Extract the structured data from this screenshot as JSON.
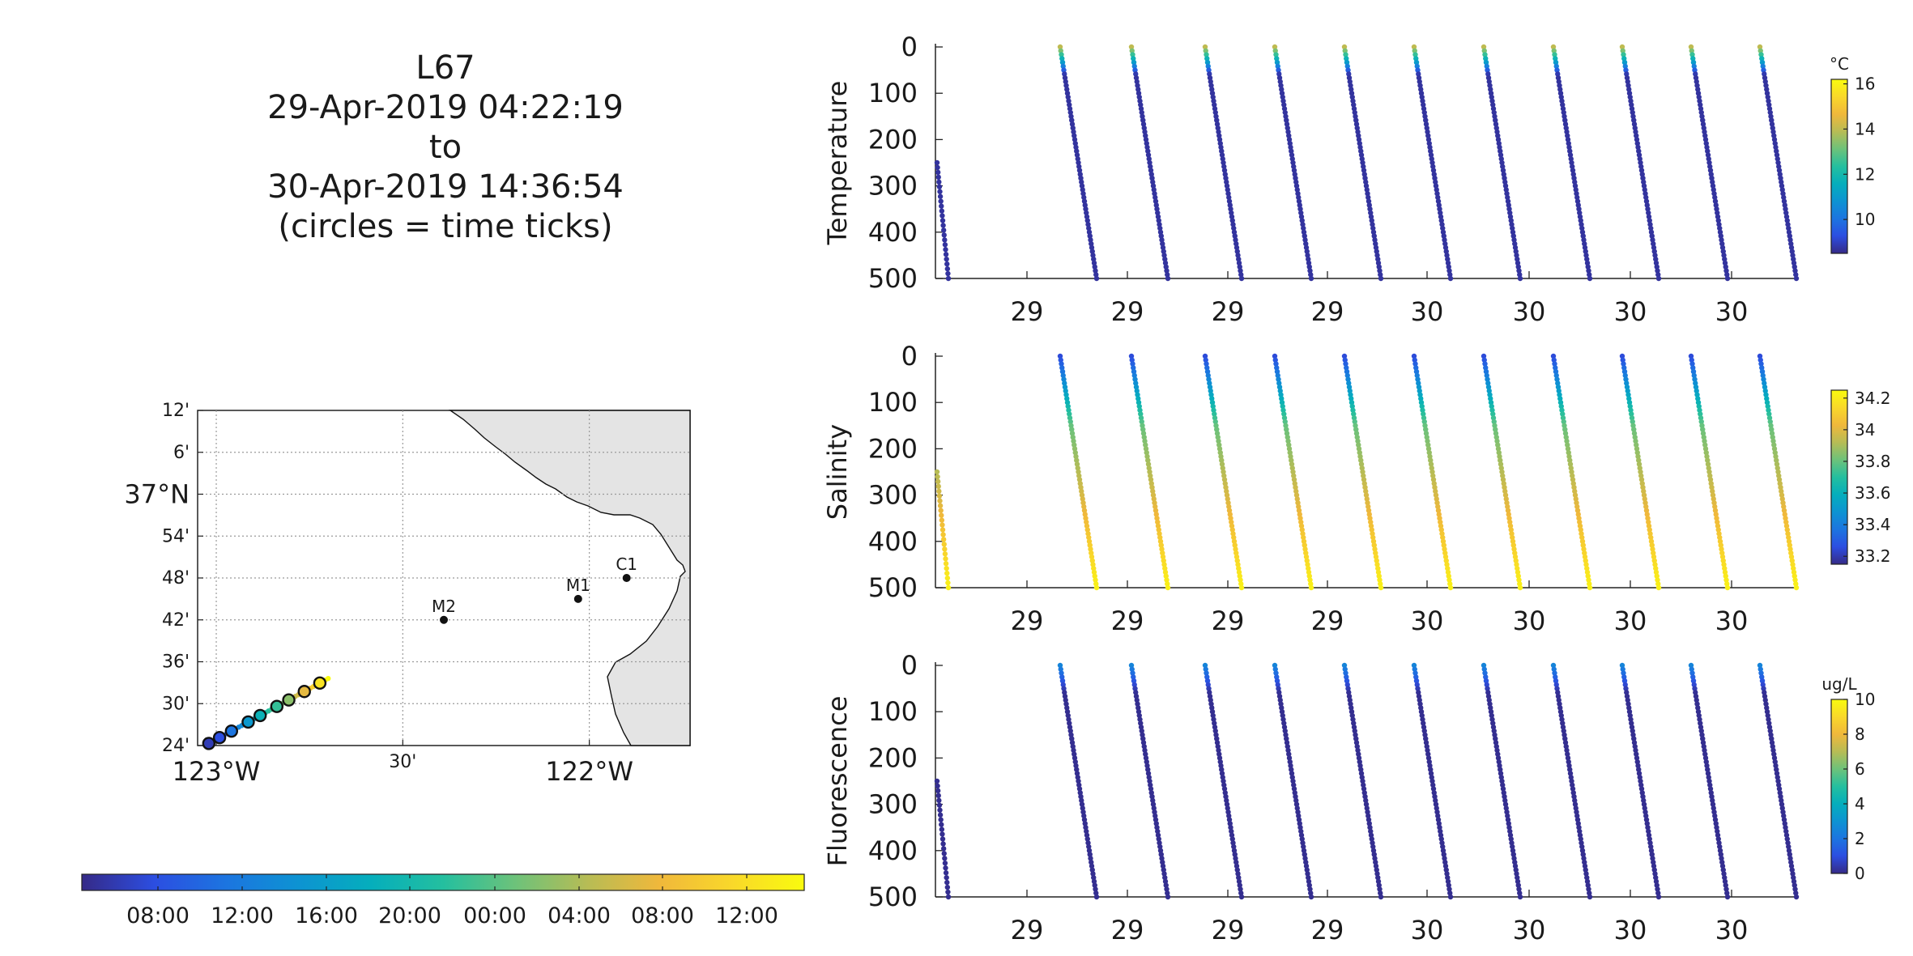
{
  "title": {
    "line1": "L67",
    "line2": "29-Apr-2019 04:22:19",
    "line3": "to",
    "line4": "30-Apr-2019 14:36:54",
    "line5": "(circles = time ticks)"
  },
  "colors": {
    "parula": [
      "#352a87",
      "#2c4ee1",
      "#1c75e0",
      "#0d93d2",
      "#05aebc",
      "#24bf9f",
      "#6dc27a",
      "#b7bc55",
      "#f0b83b",
      "#f9d82a",
      "#f9fb0e"
    ],
    "land": "#e4e4e4",
    "grid": "#9a9a9a"
  },
  "chart_data": [
    {
      "type": "map",
      "lon_ticks": [
        "123°W",
        "30'",
        "122°W"
      ],
      "lat_ticks": [
        "12'",
        "6'",
        "37°N",
        "54'",
        "48'",
        "42'",
        "36'",
        "30'",
        "24'"
      ],
      "lon_range": [
        -123.05,
        -121.73
      ],
      "lat_range": [
        36.4,
        37.2
      ],
      "grid": true,
      "stations": [
        {
          "name": "M2",
          "lon": -122.39,
          "lat": 36.7
        },
        {
          "name": "M1",
          "lon": -122.03,
          "lat": 36.75
        },
        {
          "name": "C1",
          "lon": -121.9,
          "lat": 36.8
        }
      ],
      "track": {
        "start": {
          "lon": -123.02,
          "lat": 36.405
        },
        "end": {
          "lon": -122.7,
          "lat": 36.56
        },
        "time_ticks": [
          0,
          0.09,
          0.19,
          0.33,
          0.43,
          0.57,
          0.67,
          0.8,
          0.93
        ],
        "color_fractions": [
          0.05,
          0.1,
          0.2,
          0.32,
          0.42,
          0.52,
          0.64,
          0.78,
          0.93
        ]
      }
    },
    {
      "type": "colorbar",
      "orientation": "horizontal",
      "tick_labels": [
        "08:00",
        "12:00",
        "16:00",
        "20:00",
        "00:00",
        "04:00",
        "08:00",
        "12:00"
      ]
    },
    {
      "type": "scatter",
      "ylabel": "Temperature",
      "units": "°C",
      "ylim": [
        500,
        0
      ],
      "y_ticks": [
        "0",
        "100",
        "200",
        "300",
        "400",
        "500"
      ],
      "x_ticks": [
        "29",
        "29",
        "29",
        "29",
        "30",
        "30",
        "30",
        "30"
      ],
      "clim": [
        8.5,
        16.2
      ],
      "cbar_ticks": [
        "16",
        "14",
        "12",
        "10"
      ],
      "profile_top_value": 14.0,
      "profile_bottom_value": 8.7
    },
    {
      "type": "scatter",
      "ylabel": "Salinity",
      "units": "",
      "ylim": [
        500,
        0
      ],
      "y_ticks": [
        "0",
        "100",
        "200",
        "300",
        "400",
        "500"
      ],
      "x_ticks": [
        "29",
        "29",
        "29",
        "29",
        "30",
        "30",
        "30",
        "30"
      ],
      "clim": [
        33.15,
        34.25
      ],
      "cbar_ticks": [
        "34.2",
        "34",
        "33.8",
        "33.6",
        "33.4",
        "33.2"
      ],
      "profile_top_value": 33.25,
      "profile_mid_value": 33.8,
      "profile_bottom_value": 34.22
    },
    {
      "type": "scatter",
      "ylabel": "Fluorescence",
      "units": "ug/L",
      "ylim": [
        500,
        0
      ],
      "y_ticks": [
        "0",
        "100",
        "200",
        "300",
        "400",
        "500"
      ],
      "x_ticks": [
        "29",
        "29",
        "29",
        "29",
        "30",
        "30",
        "30",
        "30"
      ],
      "clim": [
        0,
        10
      ],
      "cbar_ticks": [
        "10",
        "8",
        "6",
        "4",
        "2",
        "0"
      ],
      "profile_top_value": 2.5,
      "profile_bottom_value": 0.1
    }
  ]
}
